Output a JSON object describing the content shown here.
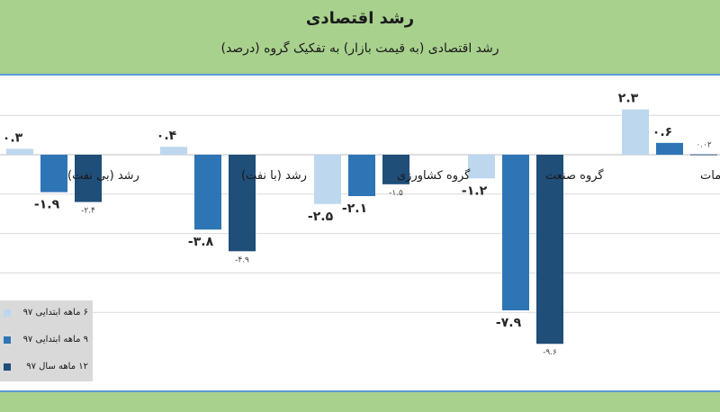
{
  "header": {
    "title": "رشد اقتصادی",
    "subtitle": "رشد اقتصادی (به قیمت بازار) به تفکیک گروه (درصد)"
  },
  "colors": {
    "series1": "#bdd7ee",
    "series2": "#2e75b6",
    "series3": "#1f4e79",
    "header_bg": "#a9d18e",
    "legend_bg": "#d9d9d9"
  },
  "chart_data": {
    "type": "bar",
    "title": "رشد اقتصادی",
    "subtitle": "رشد اقتصادی (به قیمت بازار) به تفکیک گروه (درصد)",
    "categories": [
      "رشد (بی نفت)",
      "رشد (با نفت)",
      "گروه کشاورزی",
      "گروه صنعت",
      "گروه خدمات"
    ],
    "series": [
      {
        "name": "۶ ماهه ابتدایی ۹۷",
        "values": [
          0.3,
          0.4,
          -2.5,
          -1.2,
          2.3
        ],
        "labels": [
          "۰.۳",
          "۰.۴",
          "-۲.۵",
          "-۱.۲",
          "۲.۳"
        ]
      },
      {
        "name": "۹ ماهه ابتدایی ۹۷",
        "values": [
          -1.9,
          -3.8,
          -2.1,
          -7.9,
          0.6
        ],
        "labels": [
          "-۱.۹",
          "-۳.۸",
          "-۲.۱",
          "-۷.۹",
          "۰.۶"
        ]
      },
      {
        "name": "۱۲ ماهه سال ۹۷",
        "values": [
          -2.4,
          -4.9,
          -1.5,
          -9.6,
          0.02
        ],
        "labels": [
          "-۲.۴",
          "-۴.۹",
          "-۱.۵",
          "-۹.۶",
          "۰.۰۲"
        ]
      }
    ],
    "ylim": [
      -10,
      4
    ],
    "grid": true,
    "legend_position": "bottom-left"
  }
}
